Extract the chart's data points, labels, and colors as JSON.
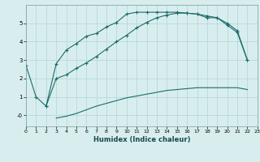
{
  "background_color": "#d8eeee",
  "grid_color": "#b8d8d8",
  "line_color": "#1e6b6b",
  "xlabel": "Humidex (Indice chaleur)",
  "xlim": [
    0,
    23
  ],
  "ylim": [
    -0.6,
    6.0
  ],
  "yticks": [
    0,
    1,
    2,
    3,
    4,
    5
  ],
  "ytick_labels": [
    "-0",
    "1",
    "2",
    "3",
    "4",
    "5"
  ],
  "xticks": [
    0,
    1,
    2,
    3,
    4,
    5,
    6,
    7,
    8,
    9,
    10,
    11,
    12,
    13,
    14,
    15,
    16,
    17,
    18,
    19,
    20,
    21,
    22,
    23
  ],
  "series1_x": [
    0,
    1,
    2,
    3,
    4,
    5,
    6,
    7,
    8,
    9,
    10,
    11,
    12,
    13,
    14,
    15,
    16,
    17,
    18,
    19,
    20,
    21,
    22
  ],
  "series1_y": [
    2.7,
    1.0,
    0.5,
    2.8,
    3.55,
    3.9,
    4.3,
    4.45,
    4.8,
    5.05,
    5.5,
    5.6,
    5.6,
    5.6,
    5.6,
    5.6,
    5.55,
    5.5,
    5.3,
    5.3,
    5.0,
    4.6,
    3.0
  ],
  "series2_x": [
    2,
    3,
    4,
    5,
    6,
    7,
    8,
    9,
    10,
    11,
    12,
    13,
    14,
    15,
    16,
    17,
    18,
    19,
    20,
    21,
    22
  ],
  "series2_y": [
    0.5,
    2.0,
    2.2,
    2.55,
    2.85,
    3.2,
    3.6,
    4.0,
    4.35,
    4.75,
    5.05,
    5.3,
    5.45,
    5.55,
    5.55,
    5.5,
    5.4,
    5.3,
    4.9,
    4.5,
    3.0
  ],
  "series3_x": [
    3,
    4,
    5,
    6,
    7,
    8,
    9,
    10,
    11,
    12,
    13,
    14,
    15,
    16,
    17,
    18,
    19,
    20,
    21,
    22
  ],
  "series3_y": [
    -0.15,
    -0.05,
    0.1,
    0.3,
    0.5,
    0.65,
    0.8,
    0.95,
    1.05,
    1.15,
    1.25,
    1.35,
    1.4,
    1.45,
    1.5,
    1.5,
    1.5,
    1.5,
    1.5,
    1.4
  ]
}
